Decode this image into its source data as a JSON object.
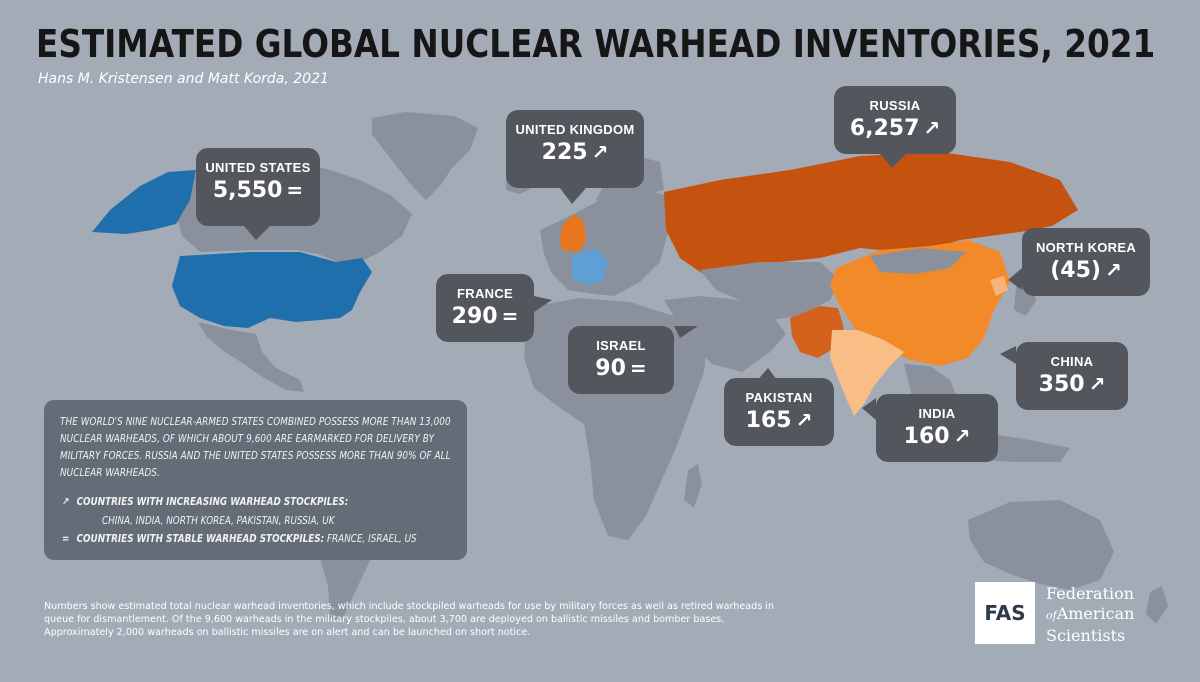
{
  "title": "ESTIMATED GLOBAL NUCLEAR WARHEAD INVENTORIES, 2021",
  "subtitle": "Hans M. Kristensen and Matt Korda, 2021",
  "colors": {
    "background": "#a3abb7",
    "land": "#8a919c",
    "land_dark": "#7e8590",
    "united_states": "#1f6fad",
    "france": "#5ea0d4",
    "russia": "#c6520f",
    "united_kingdom": "#e8761f",
    "china": "#f28a2a",
    "pakistan": "#d4621c",
    "india": "#f8be85",
    "north_korea": "#f6b47a",
    "callout": "#54565e",
    "infobox": "#646c78"
  },
  "callouts": [
    {
      "id": "united-states",
      "name": "UNITED STATES",
      "value": "5,550",
      "trend": "=",
      "trend_icon": "equals-icon"
    },
    {
      "id": "united-kingdom",
      "name": "UNITED KINGDOM",
      "value": "225",
      "trend": "↗",
      "trend_icon": "arrow-up-right-icon"
    },
    {
      "id": "russia",
      "name": "RUSSIA",
      "value": "6,257",
      "trend": "↗",
      "trend_icon": "arrow-up-right-icon"
    },
    {
      "id": "france",
      "name": "FRANCE",
      "value": "290",
      "trend": "=",
      "trend_icon": "equals-icon"
    },
    {
      "id": "israel",
      "name": "ISRAEL",
      "value": "90",
      "trend": "=",
      "trend_icon": "equals-icon"
    },
    {
      "id": "north-korea",
      "name": "NORTH KOREA",
      "value": "(45)",
      "trend": "↗",
      "trend_icon": "arrow-up-right-icon"
    },
    {
      "id": "china",
      "name": "CHINA",
      "value": "350",
      "trend": "↗",
      "trend_icon": "arrow-up-right-icon"
    },
    {
      "id": "pakistan",
      "name": "PAKISTAN",
      "value": "165",
      "trend": "↗",
      "trend_icon": "arrow-up-right-icon"
    },
    {
      "id": "india",
      "name": "INDIA",
      "value": "160",
      "trend": "↗",
      "trend_icon": "arrow-up-right-icon"
    }
  ],
  "infobox": {
    "text": "THE WORLD'S NINE NUCLEAR-ARMED STATES COMBINED POSSESS MORE THAN 13,000 NUCLEAR WARHEADS, OF WHICH ABOUT 9,600 ARE EARMARKED FOR DELIVERY BY MILITARY FORCES. RUSSIA AND THE UNITED STATES POSSESS MORE THAN 90% OF ALL NUCLEAR WARHEADS.",
    "increasing_symbol": "↗",
    "increasing_label": "COUNTRIES WITH INCREASING WARHEAD STOCKPILES:",
    "increasing_list": "CHINA, INDIA, NORTH KOREA, PAKISTAN, RUSSIA, UK",
    "stable_symbol": "=",
    "stable_label": "COUNTRIES WITH STABLE WARHEAD STOCKPILES:",
    "stable_list": "FRANCE, ISRAEL, US"
  },
  "footnote": "Numbers show estimated total nuclear warhead inventories, which include stockpiled warheads for use by military forces as well as retired warheads in queue for dismantlement. Of the 9,600 warheads in the military stockpiles, about 3,700 are deployed on ballistic missiles and bomber bases. Approximately 2,000 warheads on ballistic missiles are on alert and can be launched on short notice.",
  "logo": {
    "abbr": "FAS",
    "line1": "Federation",
    "line2_of": "of",
    "line2": "American",
    "line3": "Scientists"
  }
}
